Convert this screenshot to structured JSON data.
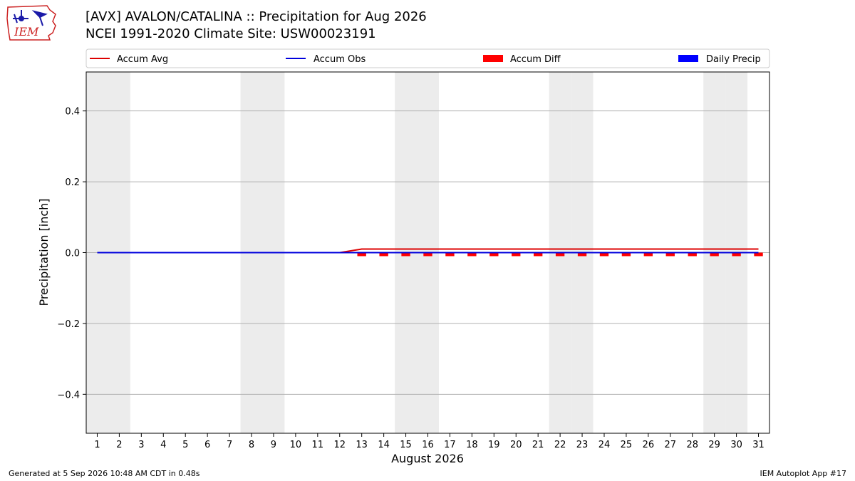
{
  "header": {
    "title_line1": "[AVX] AVALON/CATALINA :: Precipitation for Aug 2026",
    "title_line2": "NCEI 1991-2020 Climate Site: USW00023191",
    "logo_text": "IEM"
  },
  "footer": {
    "left": "Generated at 5 Sep 2026 10:48 AM CDT in 0.48s",
    "right": "IEM Autoplot App #17"
  },
  "colors": {
    "accum_avg": "#dd0000",
    "accum_obs": "#0000dd",
    "accum_diff": "#ff0000",
    "daily_precip": "#0000ff",
    "weekend_shade": "#ececec",
    "grid": "#b0b0b0"
  },
  "chart_data": {
    "type": "line",
    "xlabel": "August 2026",
    "ylabel": "Precipitation [inch]",
    "x": [
      1,
      2,
      3,
      4,
      5,
      6,
      7,
      8,
      9,
      10,
      11,
      12,
      13,
      14,
      15,
      16,
      17,
      18,
      19,
      20,
      21,
      22,
      23,
      24,
      25,
      26,
      27,
      28,
      29,
      30,
      31
    ],
    "xlim": [
      0.5,
      31.5
    ],
    "ylim": [
      -0.51,
      0.51
    ],
    "yticks": [
      0.4,
      0.2,
      0.0,
      -0.2,
      -0.4
    ],
    "ytick_labels": [
      "0.4",
      "0.2",
      "0.0",
      "−0.2",
      "−0.4"
    ],
    "grid": "horizontal",
    "legend_position": "top",
    "weekend_days": [
      1,
      2,
      8,
      9,
      15,
      16,
      22,
      23,
      29,
      30
    ],
    "series": [
      {
        "name": "Accum Avg",
        "kind": "line",
        "values": [
          0,
          0,
          0,
          0,
          0,
          0,
          0,
          0,
          0,
          0,
          0,
          0,
          0.01,
          0.01,
          0.01,
          0.01,
          0.01,
          0.01,
          0.01,
          0.01,
          0.01,
          0.01,
          0.01,
          0.01,
          0.01,
          0.01,
          0.01,
          0.01,
          0.01,
          0.01,
          0.01
        ]
      },
      {
        "name": "Accum Obs",
        "kind": "line",
        "values": [
          0,
          0,
          0,
          0,
          0,
          0,
          0,
          0,
          0,
          0,
          0,
          0,
          0,
          0,
          0,
          0,
          0,
          0,
          0,
          0,
          0,
          0,
          0,
          0,
          0,
          0,
          0,
          0,
          0,
          0,
          0
        ]
      },
      {
        "name": "Accum Diff",
        "kind": "bar",
        "values": [
          0,
          0,
          0,
          0,
          0,
          0,
          0,
          0,
          0,
          0,
          0,
          0,
          -0.01,
          -0.01,
          -0.01,
          -0.01,
          -0.01,
          -0.01,
          -0.01,
          -0.01,
          -0.01,
          -0.01,
          -0.01,
          -0.01,
          -0.01,
          -0.01,
          -0.01,
          -0.01,
          -0.01,
          -0.01,
          -0.01
        ]
      },
      {
        "name": "Daily Precip",
        "kind": "bar",
        "values": [
          0,
          0,
          0,
          0,
          0,
          0,
          0,
          0,
          0,
          0,
          0,
          0,
          0,
          0,
          0,
          0,
          0,
          0,
          0,
          0,
          0,
          0,
          0,
          0,
          0,
          0,
          0,
          0,
          0,
          0,
          0
        ]
      }
    ]
  }
}
